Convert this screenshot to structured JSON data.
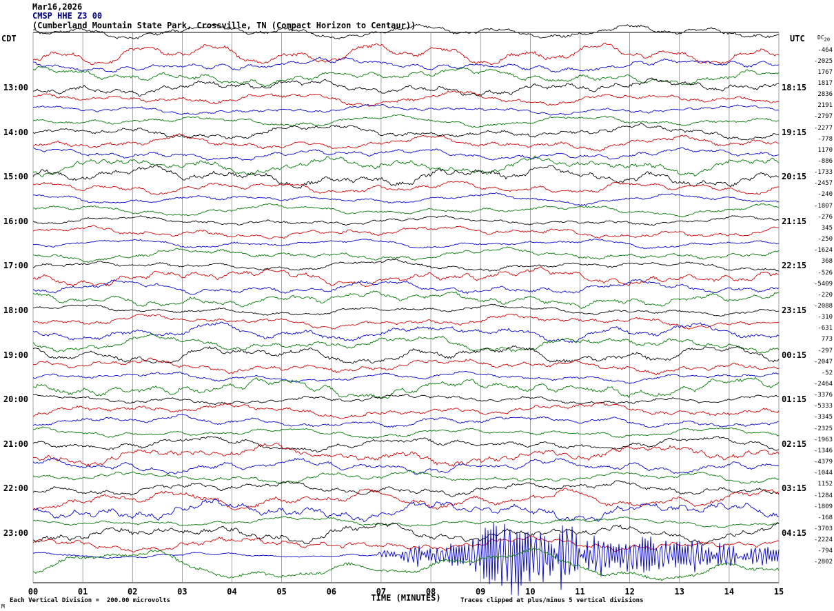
{
  "header": {
    "date": "Mar16,2026",
    "station_line": "CMSP HHE Z3 00",
    "location_line": "(Cumberland Mountain State Park, Crossville, TN (Compact Horizon to Centaur))",
    "left_tz": "CDT",
    "right_tz": "UTC",
    "dc_label": "DC",
    "dc_label_sub": "20"
  },
  "footer": {
    "scale_note": "Each Vertical Division =  200.00 microvolts",
    "x_axis_label": "TIME (MINUTES)",
    "clip_note": "Traces clipped at plus/minus 5 vertical divisions",
    "corner_mark": "M"
  },
  "chart_data": {
    "type": "line",
    "title": "CMSP HHE Z3 00 helicorder seismogram, Mar16,2026",
    "xlabel": "TIME (MINUTES)",
    "x_ticks": [
      "00",
      "01",
      "02",
      "03",
      "04",
      "05",
      "06",
      "07",
      "08",
      "09",
      "10",
      "11",
      "12",
      "13",
      "14",
      "15"
    ],
    "minutes_per_line": 15,
    "microvolts_per_division": 200,
    "clip_divisions": 5,
    "legend": "Each horizontal trace = 15 minutes; colors cycle black/red/blue/green; left labels CDT start time, right labels UTC time; rightmost tiny numbers are per-trace DC offsets",
    "event_note": "Large-amplitude clipped seismic event on the 23:30 CDT (blue) trace between minutes ~7 and 15",
    "colors": {
      "black": "#000000",
      "red": "#d00000",
      "blue": "#0000cc",
      "green": "#007a00"
    },
    "grid_color": "#7a7a7a",
    "partial_top_trace": {
      "color": "black"
    },
    "traces": [
      {
        "start_cdt": "12:15",
        "color": "red",
        "dc": -464
      },
      {
        "start_cdt": "12:30",
        "color": "blue",
        "dc": -2025
      },
      {
        "start_cdt": "12:45",
        "color": "green",
        "dc": 1767
      },
      {
        "start_cdt": "13:00",
        "color": "black",
        "dc": 1817,
        "left_label": "13:00",
        "right_label": "18:15"
      },
      {
        "start_cdt": "13:15",
        "color": "red",
        "dc": 2836
      },
      {
        "start_cdt": "13:30",
        "color": "blue",
        "dc": 2191
      },
      {
        "start_cdt": "13:45",
        "color": "green",
        "dc": -2797
      },
      {
        "start_cdt": "14:00",
        "color": "black",
        "dc": -2277,
        "left_label": "14:00",
        "right_label": "19:15"
      },
      {
        "start_cdt": "14:15",
        "color": "red",
        "dc": -778
      },
      {
        "start_cdt": "14:30",
        "color": "blue",
        "dc": 1170
      },
      {
        "start_cdt": "14:45",
        "color": "green",
        "dc": -886
      },
      {
        "start_cdt": "15:00",
        "color": "black",
        "dc": -1733,
        "left_label": "15:00",
        "right_label": "20:15"
      },
      {
        "start_cdt": "15:15",
        "color": "red",
        "dc": -2457
      },
      {
        "start_cdt": "15:30",
        "color": "blue",
        "dc": -240
      },
      {
        "start_cdt": "15:45",
        "color": "green",
        "dc": -1807
      },
      {
        "start_cdt": "16:00",
        "color": "black",
        "dc": -276,
        "left_label": "16:00",
        "right_label": "21:15"
      },
      {
        "start_cdt": "16:15",
        "color": "red",
        "dc": 345
      },
      {
        "start_cdt": "16:30",
        "color": "blue",
        "dc": -250
      },
      {
        "start_cdt": "16:45",
        "color": "green",
        "dc": -1624
      },
      {
        "start_cdt": "17:00",
        "color": "black",
        "dc": 368,
        "left_label": "17:00",
        "right_label": "22:15"
      },
      {
        "start_cdt": "17:15",
        "color": "red",
        "dc": -526
      },
      {
        "start_cdt": "17:30",
        "color": "blue",
        "dc": -5409
      },
      {
        "start_cdt": "17:45",
        "color": "green",
        "dc": -220
      },
      {
        "start_cdt": "18:00",
        "color": "black",
        "dc": -2088,
        "left_label": "18:00",
        "right_label": "23:15"
      },
      {
        "start_cdt": "18:15",
        "color": "red",
        "dc": -310
      },
      {
        "start_cdt": "18:30",
        "color": "blue",
        "dc": -631
      },
      {
        "start_cdt": "18:45",
        "color": "green",
        "dc": 773
      },
      {
        "start_cdt": "19:00",
        "color": "black",
        "dc": -297,
        "left_label": "19:00",
        "right_label": "00:15"
      },
      {
        "start_cdt": "19:15",
        "color": "red",
        "dc": -2047
      },
      {
        "start_cdt": "19:30",
        "color": "blue",
        "dc": -52
      },
      {
        "start_cdt": "19:45",
        "color": "green",
        "dc": -2464
      },
      {
        "start_cdt": "20:00",
        "color": "black",
        "dc": -3376,
        "left_label": "20:00",
        "right_label": "01:15"
      },
      {
        "start_cdt": "20:15",
        "color": "red",
        "dc": -5333
      },
      {
        "start_cdt": "20:30",
        "color": "blue",
        "dc": -3345
      },
      {
        "start_cdt": "20:45",
        "color": "green",
        "dc": -2325
      },
      {
        "start_cdt": "21:00",
        "color": "black",
        "dc": -1963,
        "left_label": "21:00",
        "right_label": "02:15"
      },
      {
        "start_cdt": "21:15",
        "color": "red",
        "dc": -1346
      },
      {
        "start_cdt": "21:30",
        "color": "blue",
        "dc": -4379
      },
      {
        "start_cdt": "21:45",
        "color": "green",
        "dc": -1044
      },
      {
        "start_cdt": "22:00",
        "color": "black",
        "dc": 1152,
        "left_label": "22:00",
        "right_label": "03:15"
      },
      {
        "start_cdt": "22:15",
        "color": "red",
        "dc": -1284
      },
      {
        "start_cdt": "22:30",
        "color": "blue",
        "dc": -1809
      },
      {
        "start_cdt": "22:45",
        "color": "green",
        "dc": -168
      },
      {
        "start_cdt": "23:00",
        "color": "black",
        "dc": -3703,
        "left_label": "23:00",
        "right_label": "04:15"
      },
      {
        "start_cdt": "23:15",
        "color": "red",
        "dc": -2224
      },
      {
        "start_cdt": "23:30",
        "color": "blue",
        "dc": -794,
        "amp": 2.2,
        "event": true
      },
      {
        "start_cdt": "23:45",
        "color": "green",
        "dc": -2802,
        "amp": 13,
        "slow": true
      }
    ]
  }
}
